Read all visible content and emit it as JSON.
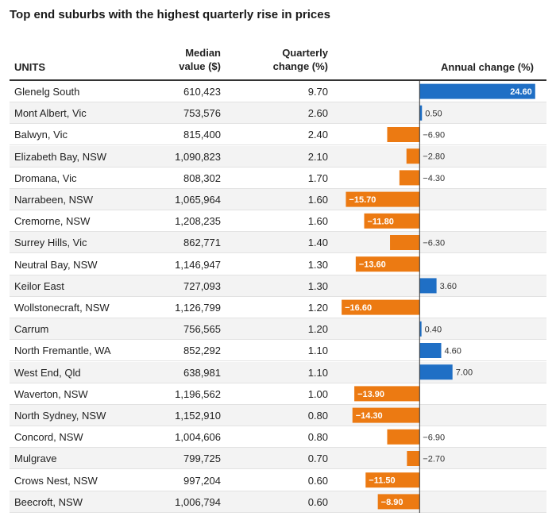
{
  "title": "Top end suburbs with the highest quarterly rise in prices",
  "columns": {
    "units": "UNITS",
    "median_line1": "Median",
    "median_line2": "value ($)",
    "quarterly_line1": "Quarterly",
    "quarterly_line2": "change (%)",
    "annual": "Annual change (%)"
  },
  "colors": {
    "positive": "#1f6fc5",
    "negative": "#ec7a12",
    "axis": "#333333"
  },
  "chart_data": {
    "type": "table",
    "title": "Top end suburbs with the highest quarterly rise in prices",
    "columns": [
      "UNITS",
      "Median value ($)",
      "Quarterly change (%)",
      "Annual change (%)"
    ],
    "annual_range": [
      -20,
      27
    ],
    "rows": [
      {
        "name": "Glenelg South",
        "median": "610,423",
        "quarterly": "9.70",
        "annual": 24.6,
        "annual_label": "24.60"
      },
      {
        "name": "Mont Albert, Vic",
        "median": "753,576",
        "quarterly": "2.60",
        "annual": 0.5,
        "annual_label": "0.50"
      },
      {
        "name": "Balwyn, Vic",
        "median": "815,400",
        "quarterly": "2.40",
        "annual": -6.9,
        "annual_label": "−6.90"
      },
      {
        "name": "Elizabeth Bay, NSW",
        "median": "1,090,823",
        "quarterly": "2.10",
        "annual": -2.8,
        "annual_label": "−2.80"
      },
      {
        "name": "Dromana, Vic",
        "median": "808,302",
        "quarterly": "1.70",
        "annual": -4.3,
        "annual_label": "−4.30"
      },
      {
        "name": "Narrabeen, NSW",
        "median": "1,065,964",
        "quarterly": "1.60",
        "annual": -15.7,
        "annual_label": "−15.70"
      },
      {
        "name": "Cremorne, NSW",
        "median": "1,208,235",
        "quarterly": "1.60",
        "annual": -11.8,
        "annual_label": "−11.80"
      },
      {
        "name": "Surrey Hills, Vic",
        "median": "862,771",
        "quarterly": "1.40",
        "annual": -6.3,
        "annual_label": "−6.30"
      },
      {
        "name": "Neutral Bay, NSW",
        "median": "1,146,947",
        "quarterly": "1.30",
        "annual": -13.6,
        "annual_label": "−13.60"
      },
      {
        "name": "Keilor East",
        "median": "727,093",
        "quarterly": "1.30",
        "annual": 3.6,
        "annual_label": "3.60"
      },
      {
        "name": "Wollstonecraft, NSW",
        "median": "1,126,799",
        "quarterly": "1.20",
        "annual": -16.6,
        "annual_label": "−16.60"
      },
      {
        "name": "Carrum",
        "median": "756,565",
        "quarterly": "1.20",
        "annual": 0.4,
        "annual_label": "0.40"
      },
      {
        "name": "North Fremantle, WA",
        "median": "852,292",
        "quarterly": "1.10",
        "annual": 4.6,
        "annual_label": "4.60"
      },
      {
        "name": "West End, Qld",
        "median": "638,981",
        "quarterly": "1.10",
        "annual": 7.0,
        "annual_label": "7.00"
      },
      {
        "name": "Waverton, NSW",
        "median": "1,196,562",
        "quarterly": "1.00",
        "annual": -13.9,
        "annual_label": "−13.90"
      },
      {
        "name": "North Sydney, NSW",
        "median": "1,152,910",
        "quarterly": "0.80",
        "annual": -14.3,
        "annual_label": "−14.30"
      },
      {
        "name": "Concord, NSW",
        "median": "1,004,606",
        "quarterly": "0.80",
        "annual": -6.9,
        "annual_label": "−6.90"
      },
      {
        "name": "Mulgrave",
        "median": "799,725",
        "quarterly": "0.70",
        "annual": -2.7,
        "annual_label": "−2.70"
      },
      {
        "name": "Crows Nest, NSW",
        "median": "997,204",
        "quarterly": "0.60",
        "annual": -11.5,
        "annual_label": "−11.50"
      },
      {
        "name": "Beecroft, NSW",
        "median": "1,006,794",
        "quarterly": "0.60",
        "annual": -8.9,
        "annual_label": "−8.90"
      }
    ]
  }
}
